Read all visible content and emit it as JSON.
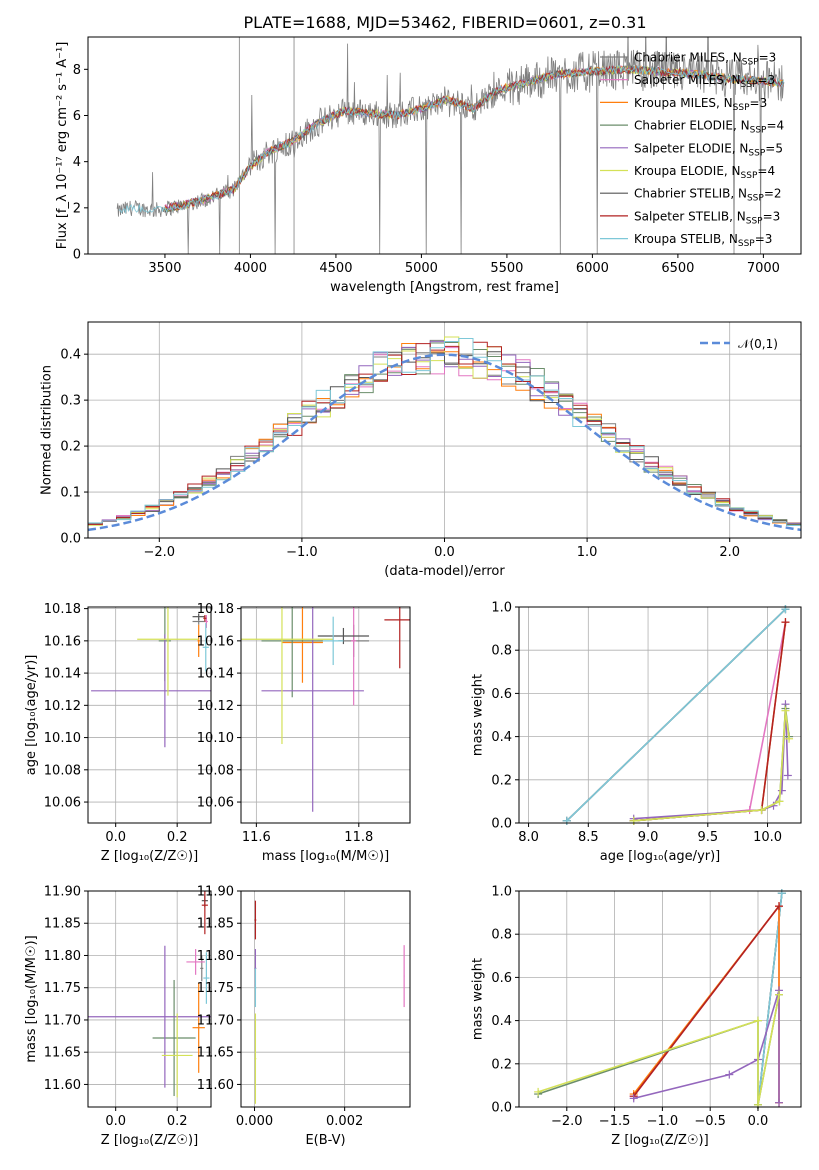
{
  "figure": {
    "title": "PLATE=1688, MJD=53462, FIBERID=0601, z=0.31"
  },
  "models": [
    {
      "name": "Chabrier MILES",
      "nssp": "3",
      "color": "#7f7f7f"
    },
    {
      "name": "Salpeter MILES",
      "nssp": "3",
      "color": "#e377c2"
    },
    {
      "name": "Kroupa MILES",
      "nssp": "3",
      "color": "#ff7f0e"
    },
    {
      "name": "Chabrier ELODIE",
      "nssp": "4",
      "color": "#6b8e6b"
    },
    {
      "name": "Salpeter ELODIE",
      "nssp": "5",
      "color": "#9467bd"
    },
    {
      "name": "Kroupa ELODIE",
      "nssp": "4",
      "color": "#d4e157"
    },
    {
      "name": "Chabrier STELIB",
      "nssp": "2",
      "color": "#555555"
    },
    {
      "name": "Salpeter STELIB",
      "nssp": "3",
      "color": "#b22222"
    },
    {
      "name": "Kroupa STELIB",
      "nssp": "3",
      "color": "#7ec8d8"
    }
  ],
  "chart_data": [
    {
      "id": "spectrum",
      "type": "line",
      "xlabel": "wavelength [Angstrom, rest frame]",
      "ylabel": "Flux [f_λ 10⁻¹⁷ erg cm⁻² s⁻¹ A⁻¹]",
      "xlim": [
        3050,
        7220
      ],
      "ylim": [
        0,
        9.4
      ],
      "xticks": [
        3500,
        4000,
        4500,
        5000,
        5500,
        6000,
        6500,
        7000
      ],
      "yticks": [
        0,
        2,
        4,
        6,
        8
      ],
      "grid": false,
      "legend": "upper-right",
      "data_color": "#808080",
      "continuum": [
        [
          3230,
          1.85
        ],
        [
          3300,
          2.0
        ],
        [
          3450,
          1.9
        ],
        [
          3600,
          2.1
        ],
        [
          3750,
          2.4
        ],
        [
          3900,
          2.8
        ],
        [
          4000,
          3.8
        ],
        [
          4100,
          4.4
        ],
        [
          4250,
          4.9
        ],
        [
          4400,
          5.7
        ],
        [
          4550,
          6.2
        ],
        [
          4700,
          6.1
        ],
        [
          4850,
          6.0
        ],
        [
          5000,
          6.3
        ],
        [
          5150,
          6.7
        ],
        [
          5300,
          6.3
        ],
        [
          5450,
          7.1
        ],
        [
          5600,
          7.4
        ],
        [
          5800,
          7.8
        ],
        [
          6000,
          7.9
        ],
        [
          6200,
          8.0
        ],
        [
          6400,
          7.9
        ],
        [
          6600,
          7.8
        ],
        [
          6800,
          7.6
        ],
        [
          7000,
          7.5
        ],
        [
          7120,
          7.4
        ]
      ]
    },
    {
      "id": "residuals",
      "type": "histogram",
      "xlabel": "(data-model)/error",
      "ylabel": "Normed distribution",
      "xlim": [
        -2.5,
        2.5
      ],
      "ylim": [
        0,
        0.47
      ],
      "xticks": [
        -2,
        -1,
        0,
        1,
        2
      ],
      "yticks": [
        0.0,
        0.1,
        0.2,
        0.3,
        0.4
      ],
      "grid": true,
      "legend": "upper-right",
      "legend_label": "𝒩(0,1)",
      "normal_color": "#5b8bd9",
      "bin_width": 0.1
    },
    {
      "id": "age-vs-Z",
      "type": "errorbar",
      "xlabel": "Z [log₁₀(Z/Z☉)]",
      "ylabel": "age  [log₁₀(age/yr)]",
      "xlim": [
        -0.09,
        0.31
      ],
      "ylim": [
        10.047,
        10.181
      ],
      "xticks": [
        0.0,
        0.2
      ],
      "yticks": [
        10.06,
        10.08,
        10.1,
        10.12,
        10.14,
        10.16,
        10.18
      ],
      "grid": true,
      "points": [
        {
          "model": 0,
          "x": 0.27,
          "xerr": 0.02,
          "y": 10.172,
          "yerr": 0.002
        },
        {
          "model": 1,
          "x": 0.295,
          "xerr": 0.005,
          "y": 10.172,
          "yerr": 0.004
        },
        {
          "model": 2,
          "x": 0.27,
          "xerr": 0.004,
          "y": 10.16,
          "yerr": 0.01
        },
        {
          "model": 3,
          "x": 0.16,
          "xerr": 0.02,
          "y": 10.16,
          "yerr": 0.025
        },
        {
          "model": 4,
          "x": 0.16,
          "xerr": 0.24,
          "y": 10.129,
          "yerr": 0.035
        },
        {
          "model": 5,
          "x": 0.17,
          "xerr": 0.1,
          "y": 10.161,
          "yerr": 0.035
        },
        {
          "model": 6,
          "x": 0.27,
          "xerr": 0.02,
          "y": 10.175,
          "yerr": 0.002
        },
        {
          "model": 7,
          "x": 0.29,
          "xerr": 0.005,
          "y": 10.174,
          "yerr": 0.002
        },
        {
          "model": 8,
          "x": 0.293,
          "xerr": 0.01,
          "y": 10.156,
          "yerr": 0.015
        }
      ]
    },
    {
      "id": "age-vs-mass",
      "type": "errorbar",
      "xlabel": "mass [log₁₀(M/M☉)]",
      "ylabel": "",
      "xlim": [
        11.57,
        11.9
      ],
      "ylim": [
        10.047,
        10.181
      ],
      "xticks": [
        11.6,
        11.8
      ],
      "yticks": [
        10.06,
        10.08,
        10.1,
        10.12,
        10.14,
        10.16,
        10.18
      ],
      "grid": true,
      "points": [
        {
          "model": 0,
          "x": 11.79,
          "xerr": 0.03,
          "y": 10.16,
          "yerr": 0.01
        },
        {
          "model": 1,
          "x": 11.79,
          "xerr": 0.005,
          "y": 10.16,
          "yerr": 0.04
        },
        {
          "model": 2,
          "x": 11.69,
          "xerr": 0.04,
          "y": 10.159,
          "yerr": 0.025
        },
        {
          "model": 3,
          "x": 11.67,
          "xerr": 0.06,
          "y": 10.16,
          "yerr": 0.035
        },
        {
          "model": 4,
          "x": 11.71,
          "xerr": 0.1,
          "y": 10.129,
          "yerr": 0.075
        },
        {
          "model": 5,
          "x": 11.65,
          "xerr": 0.1,
          "y": 10.161,
          "yerr": 0.065
        },
        {
          "model": 6,
          "x": 11.77,
          "xerr": 0.05,
          "y": 10.163,
          "yerr": 0.005
        },
        {
          "model": 7,
          "x": 11.88,
          "xerr": 0.03,
          "y": 10.173,
          "yerr": 0.03
        },
        {
          "model": 8,
          "x": 11.75,
          "xerr": 0.02,
          "y": 10.16,
          "yerr": 0.015
        }
      ]
    },
    {
      "id": "massweight-vs-age",
      "type": "line",
      "xlabel": "age  [log₁₀(age/yr)]",
      "ylabel": "mass weight",
      "xlim": [
        7.92,
        10.28
      ],
      "ylim": [
        0,
        1
      ],
      "xticks": [
        8.0,
        8.5,
        9.0,
        9.5,
        10.0
      ],
      "yticks": [
        0.0,
        0.2,
        0.4,
        0.6,
        0.8,
        1.0
      ],
      "grid": true,
      "series": [
        {
          "model": 0,
          "x": [
            8.32,
            10.15
          ],
          "y": [
            0.01,
            0.99
          ]
        },
        {
          "model": 6,
          "x": [
            8.32,
            10.15
          ],
          "y": [
            0.01,
            0.99
          ]
        },
        {
          "model": 8,
          "x": [
            8.32,
            10.15
          ],
          "y": [
            0.01,
            0.99
          ]
        },
        {
          "model": 1,
          "x": [
            8.88,
            9.85,
            10.15
          ],
          "y": [
            0.01,
            0.06,
            0.93
          ]
        },
        {
          "model": 2,
          "x": [
            8.88,
            9.95,
            10.15
          ],
          "y": [
            0.01,
            0.06,
            0.93
          ]
        },
        {
          "model": 7,
          "x": [
            8.88,
            9.95,
            10.15
          ],
          "y": [
            0.01,
            0.06,
            0.93
          ]
        },
        {
          "model": 4,
          "x": [
            8.88,
            9.95,
            10.05,
            10.12,
            10.15,
            10.17
          ],
          "y": [
            0.02,
            0.06,
            0.08,
            0.15,
            0.55,
            0.22
          ]
        },
        {
          "model": 3,
          "x": [
            8.88,
            9.95,
            10.1,
            10.15,
            10.18
          ],
          "y": [
            0.01,
            0.06,
            0.1,
            0.53,
            0.4
          ]
        },
        {
          "model": 5,
          "x": [
            8.88,
            9.95,
            10.1,
            10.15,
            10.18
          ],
          "y": [
            0.01,
            0.06,
            0.1,
            0.52,
            0.39
          ]
        }
      ]
    },
    {
      "id": "mass-vs-Z",
      "type": "errorbar",
      "xlabel": "Z [log₁₀(Z/Z☉)]",
      "ylabel": "mass [log₁₀(M/M☉)]",
      "xlim": [
        -0.09,
        0.31
      ],
      "ylim": [
        11.565,
        11.9
      ],
      "xticks": [
        0.0,
        0.2
      ],
      "yticks": [
        11.6,
        11.65,
        11.7,
        11.75,
        11.8,
        11.85,
        11.9
      ],
      "grid": true,
      "points": [
        {
          "model": 0,
          "x": 0.28,
          "xerr": 0.005,
          "y": 11.78,
          "yerr": 0.02
        },
        {
          "model": 1,
          "x": 0.26,
          "xerr": 0.03,
          "y": 11.79,
          "yerr": 0.02
        },
        {
          "model": 2,
          "x": 0.27,
          "xerr": 0.02,
          "y": 11.688,
          "yerr": 0.07
        },
        {
          "model": 3,
          "x": 0.19,
          "xerr": 0.07,
          "y": 11.672,
          "yerr": 0.09
        },
        {
          "model": 4,
          "x": 0.16,
          "xerr": 0.25,
          "y": 11.705,
          "yerr": 0.11
        },
        {
          "model": 5,
          "x": 0.2,
          "xerr": 0.05,
          "y": 11.645,
          "yerr": 0.065
        },
        {
          "model": 6,
          "x": 0.29,
          "xerr": 0.01,
          "y": 11.885,
          "yerr": 0.01
        },
        {
          "model": 7,
          "x": 0.29,
          "xerr": 0.01,
          "y": 11.878,
          "yerr": 0.045
        },
        {
          "model": 8,
          "x": 0.295,
          "xerr": 0.01,
          "y": 11.765,
          "yerr": 0.04
        }
      ]
    },
    {
      "id": "mass-vs-EBV",
      "type": "errorbar",
      "xlabel": "E(B-V)",
      "ylabel": "",
      "xlim": [
        -0.0003,
        0.00345
      ],
      "ylim": [
        11.565,
        11.9
      ],
      "xticks": [
        0.0,
        0.002
      ],
      "yticks": [
        11.6,
        11.65,
        11.7,
        11.75,
        11.8,
        11.85,
        11.9
      ],
      "grid": true,
      "points": [
        {
          "model": 7,
          "x": 2e-05,
          "xerr": 2e-05,
          "y": 11.855,
          "yerr": 0.03
        },
        {
          "model": 4,
          "x": 2e-05,
          "xerr": 2e-05,
          "y": 11.78,
          "yerr": 0.03
        },
        {
          "model": 8,
          "x": 2e-05,
          "xerr": 2e-05,
          "y": 11.75,
          "yerr": 0.03
        },
        {
          "model": 5,
          "x": 2e-05,
          "xerr": 2e-05,
          "y": 11.64,
          "yerr": 0.07
        },
        {
          "model": 1,
          "x": 0.00332,
          "xerr": 1e-05,
          "y": 11.768,
          "yerr": 0.048
        }
      ]
    },
    {
      "id": "massweight-vs-Z",
      "type": "line",
      "xlabel": "Z [log₁₀(Z/Z☉)]",
      "ylabel": "mass weight",
      "xlim": [
        -2.5,
        0.45
      ],
      "ylim": [
        0,
        1
      ],
      "xticks": [
        -2.0,
        -1.5,
        -1.0,
        -0.5,
        0.0
      ],
      "yticks": [
        0.0,
        0.2,
        0.4,
        0.6,
        0.8,
        1.0
      ],
      "grid": true,
      "series": [
        {
          "model": 0,
          "x": [
            0.0,
            0.25
          ],
          "y": [
            0.01,
            0.99
          ]
        },
        {
          "model": 6,
          "x": [
            0.0,
            0.25
          ],
          "y": [
            0.01,
            0.99
          ]
        },
        {
          "model": 8,
          "x": [
            0.0,
            0.25
          ],
          "y": [
            0.01,
            0.99
          ]
        },
        {
          "model": 1,
          "x": [
            -1.3,
            0.22,
            0.22
          ],
          "y": [
            0.05,
            0.93,
            0.02
          ]
        },
        {
          "model": 2,
          "x": [
            -1.3,
            0.22,
            0.22
          ],
          "y": [
            0.06,
            0.93,
            0.02
          ]
        },
        {
          "model": 7,
          "x": [
            -1.3,
            0.22
          ],
          "y": [
            0.05,
            0.93
          ]
        },
        {
          "model": 4,
          "x": [
            -1.3,
            -0.3,
            0.0,
            0.22,
            0.22
          ],
          "y": [
            0.04,
            0.15,
            0.22,
            0.54,
            0.02
          ]
        },
        {
          "model": 3,
          "x": [
            -2.3,
            0.0,
            0.0,
            0.22
          ],
          "y": [
            0.06,
            0.4,
            0.01,
            0.52
          ]
        },
        {
          "model": 5,
          "x": [
            -2.3,
            0.0,
            0.0,
            0.22
          ],
          "y": [
            0.07,
            0.4,
            0.01,
            0.52
          ]
        }
      ]
    }
  ]
}
